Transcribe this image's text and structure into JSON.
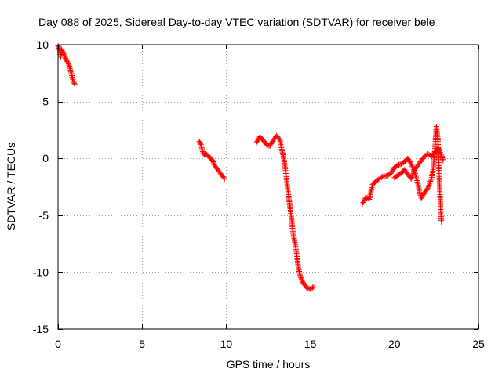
{
  "chart_data": {
    "type": "scatter",
    "title": "Day 088 of 2025, Sidereal Day-to-day VTEC variation (SDTVAR) for receiver bele",
    "xlabel": "GPS time / hours",
    "ylabel": "SDTVAR / TECUs",
    "xlim": [
      0,
      25
    ],
    "ylim": [
      -15,
      10
    ],
    "xticks": [
      0,
      5,
      10,
      15,
      20,
      25
    ],
    "yticks": [
      -15,
      -10,
      -5,
      0,
      5,
      10
    ],
    "xtick_labels": [
      "0",
      "5",
      "10",
      "15",
      "20",
      "25"
    ],
    "ytick_labels": [
      "-15",
      "-10",
      "-5",
      "0",
      "5",
      "10"
    ],
    "grid": true,
    "marker": "+",
    "color": "#ff0000",
    "series": [
      {
        "name": "SDTVAR",
        "segments": [
          [
            [
              0.0,
              9.9
            ],
            [
              0.1,
              9.5
            ],
            [
              0.15,
              8.9
            ],
            [
              0.2,
              9.6
            ],
            [
              0.3,
              9.3
            ],
            [
              0.4,
              9.0
            ],
            [
              0.5,
              8.6
            ],
            [
              0.6,
              8.4
            ],
            [
              0.7,
              8.0
            ],
            [
              0.8,
              7.4
            ],
            [
              0.9,
              6.8
            ],
            [
              1.0,
              6.5
            ]
          ],
          [
            [
              8.4,
              1.5
            ],
            [
              8.5,
              1.2
            ],
            [
              8.6,
              0.6
            ],
            [
              8.7,
              0.3
            ],
            [
              8.8,
              0.4
            ],
            [
              9.0,
              0.1
            ],
            [
              9.2,
              -0.2
            ],
            [
              9.3,
              -0.6
            ],
            [
              9.5,
              -1.0
            ],
            [
              9.7,
              -1.4
            ],
            [
              9.9,
              -1.8
            ]
          ],
          [
            [
              11.8,
              1.4
            ],
            [
              12.0,
              1.9
            ],
            [
              12.2,
              1.6
            ],
            [
              12.4,
              1.2
            ],
            [
              12.6,
              1.1
            ],
            [
              12.8,
              1.6
            ],
            [
              13.0,
              2.0
            ],
            [
              13.2,
              1.6
            ],
            [
              13.3,
              0.8
            ],
            [
              13.4,
              0.2
            ],
            [
              13.5,
              -0.8
            ],
            [
              13.6,
              -2.0
            ],
            [
              13.7,
              -3.2
            ],
            [
              13.8,
              -4.3
            ],
            [
              13.9,
              -5.5
            ],
            [
              14.0,
              -6.8
            ],
            [
              14.1,
              -7.5
            ],
            [
              14.2,
              -8.5
            ],
            [
              14.3,
              -9.7
            ],
            [
              14.4,
              -10.3
            ],
            [
              14.5,
              -10.7
            ],
            [
              14.6,
              -11.0
            ],
            [
              14.7,
              -11.2
            ],
            [
              14.8,
              -11.4
            ],
            [
              15.0,
              -11.5
            ],
            [
              15.2,
              -11.3
            ]
          ],
          [
            [
              18.1,
              -4.0
            ],
            [
              18.3,
              -3.4
            ],
            [
              18.5,
              -3.6
            ],
            [
              18.7,
              -2.3
            ],
            [
              19.0,
              -1.9
            ],
            [
              19.3,
              -1.6
            ],
            [
              19.6,
              -1.5
            ],
            [
              19.8,
              -1.3
            ],
            [
              20.0,
              -0.8
            ],
            [
              20.2,
              -0.6
            ],
            [
              20.4,
              -0.5
            ],
            [
              20.6,
              -0.3
            ],
            [
              20.8,
              0.0
            ],
            [
              21.0,
              -0.5
            ],
            [
              21.2,
              -1.2
            ],
            [
              21.4,
              -2.2
            ],
            [
              21.5,
              -3.0
            ],
            [
              21.6,
              -3.5
            ],
            [
              21.8,
              -3.0
            ],
            [
              22.0,
              -2.6
            ],
            [
              22.2,
              -1.8
            ],
            [
              22.3,
              -1.0
            ],
            [
              22.4,
              0.6
            ],
            [
              22.5,
              2.8
            ],
            [
              22.6,
              1.5
            ],
            [
              22.7,
              -2.8
            ],
            [
              22.75,
              -4.5
            ],
            [
              22.8,
              -5.6
            ]
          ],
          [
            [
              20.0,
              -1.7
            ],
            [
              20.2,
              -1.5
            ],
            [
              20.4,
              -1.3
            ],
            [
              20.6,
              -1.0
            ],
            [
              20.8,
              -1.4
            ],
            [
              21.0,
              -1.8
            ],
            [
              21.2,
              -1.0
            ],
            [
              21.4,
              -0.6
            ],
            [
              21.6,
              -0.2
            ],
            [
              21.8,
              0.2
            ],
            [
              22.0,
              0.4
            ],
            [
              22.2,
              0.2
            ],
            [
              22.4,
              0.5
            ],
            [
              22.6,
              0.9
            ],
            [
              22.8,
              0.3
            ],
            [
              22.9,
              -0.2
            ]
          ]
        ]
      }
    ]
  }
}
